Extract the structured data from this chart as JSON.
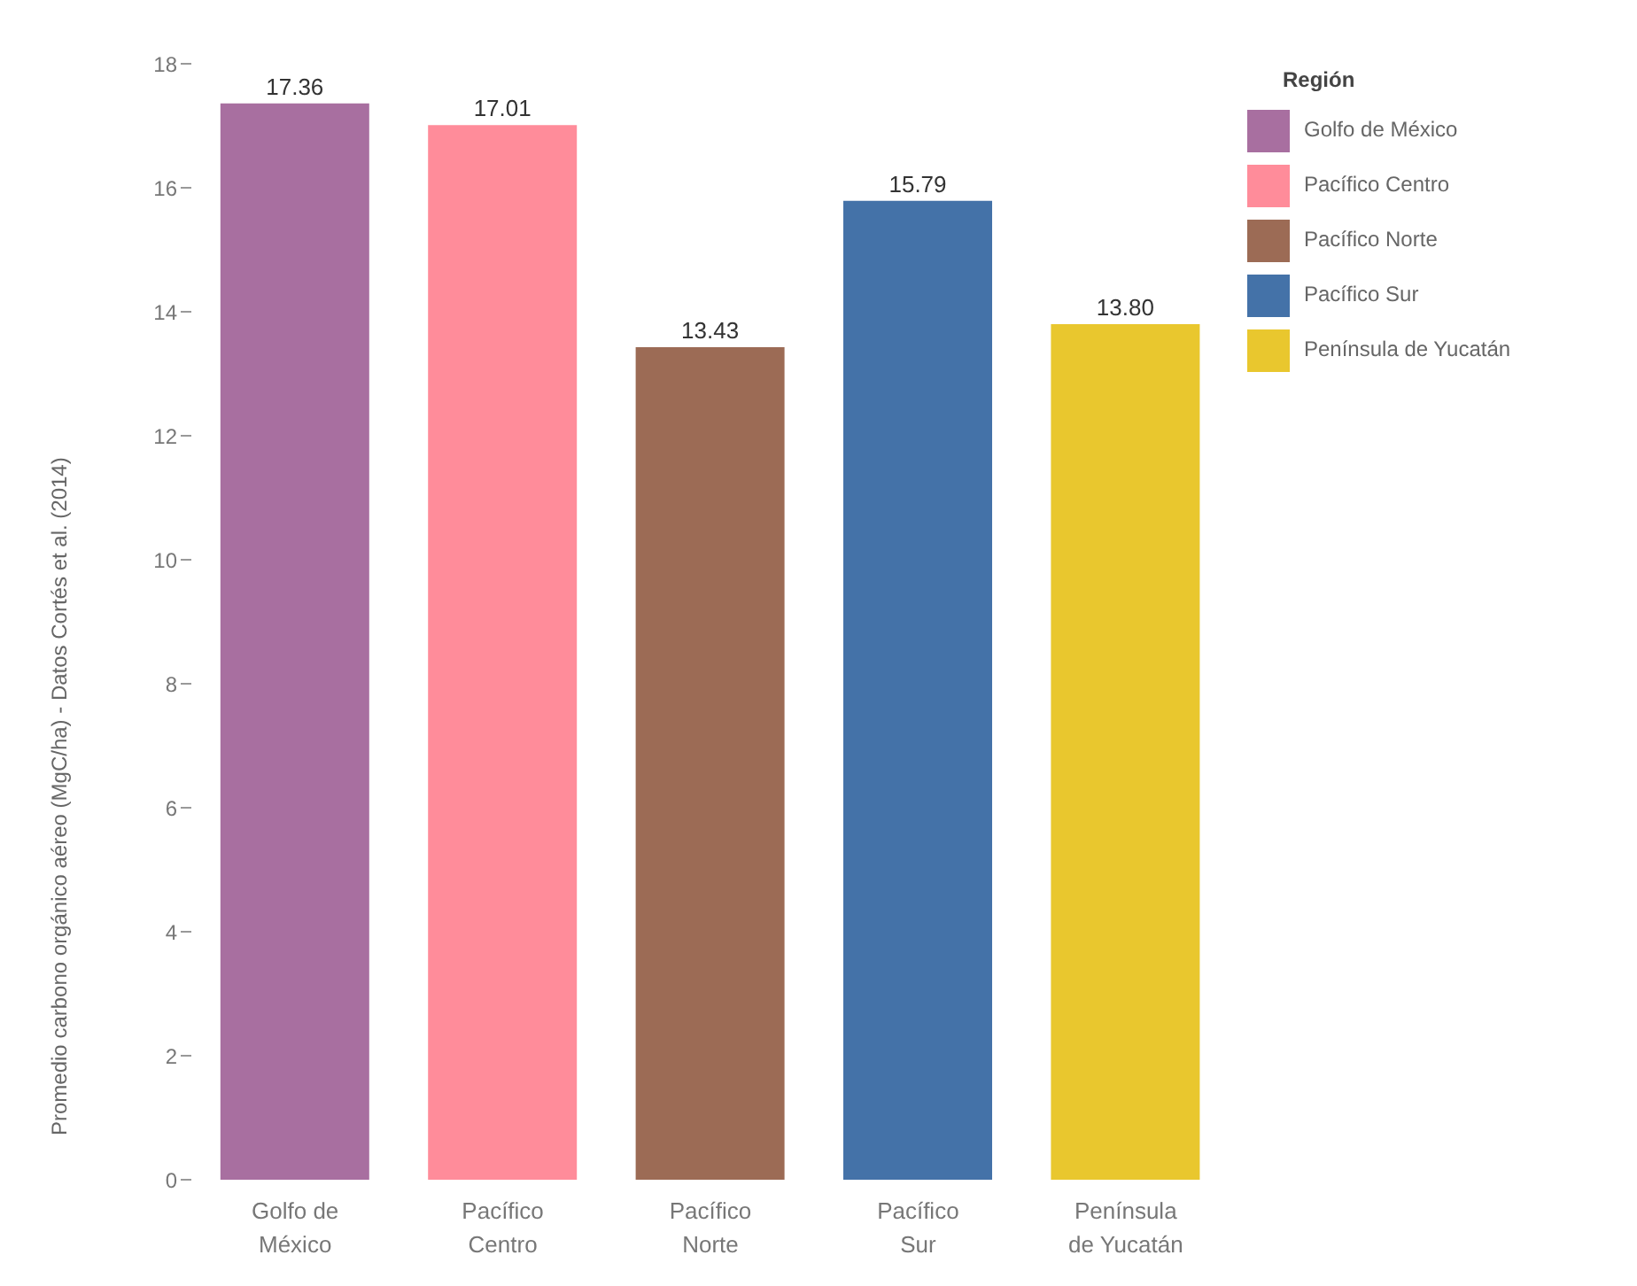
{
  "chart_data": {
    "type": "bar",
    "ylabel": "Promedio carbono orgánico aéreo (MgC/ha) - Datos Cortés et al. (2014)",
    "legend_title": "Región",
    "categories": [
      "Golfo de México",
      "Pacífico Centro",
      "Pacífico Norte",
      "Pacífico Sur",
      "Península de Yucatán"
    ],
    "stacked": true,
    "series": [
      {
        "name": "Golfo de México",
        "color": "#a86fa0",
        "values": [
          17.36,
          null,
          null,
          null,
          null
        ],
        "value_labels": [
          "17.36",
          null,
          null,
          null,
          null
        ]
      },
      {
        "name": "Pacífico Centro",
        "color": "#ff8c9a",
        "values": [
          null,
          17.01,
          null,
          null,
          null
        ],
        "value_labels": [
          null,
          "17.01",
          null,
          null,
          null
        ]
      },
      {
        "name": "Pacífico Norte",
        "color": "#9c6b55",
        "values": [
          null,
          null,
          13.43,
          null,
          null
        ],
        "value_labels": [
          null,
          null,
          "13.43",
          null,
          null
        ]
      },
      {
        "name": "Pacífico Sur",
        "color": "#4472a8",
        "values": [
          null,
          null,
          null,
          15.79,
          null
        ],
        "value_labels": [
          null,
          null,
          null,
          "15.79",
          null
        ]
      },
      {
        "name": "Península de Yucatán",
        "color": "#e9c72e",
        "values": [
          null,
          null,
          null,
          null,
          13.8
        ],
        "value_labels": [
          null,
          null,
          null,
          null,
          "13.80"
        ]
      }
    ],
    "ylim": [
      0,
      18
    ],
    "yticks": [
      0,
      2,
      4,
      6,
      8,
      10,
      12,
      14,
      16,
      18
    ],
    "grid": false,
    "legend": "top right"
  }
}
